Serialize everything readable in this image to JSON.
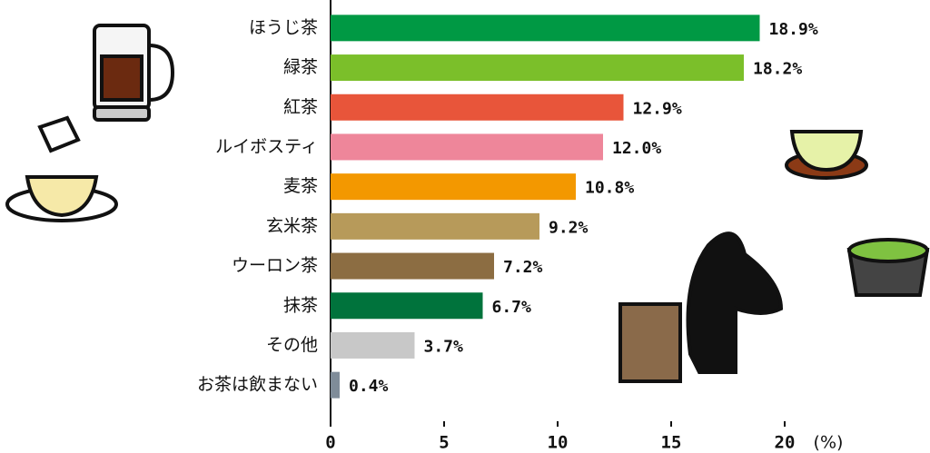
{
  "chart_data": {
    "type": "bar",
    "orientation": "horizontal",
    "categories": [
      "ほうじ茶",
      "緑茶",
      "紅茶",
      "ルイボスティ",
      "麦茶",
      "玄米茶",
      "ウーロン茶",
      "抹茶",
      "その他",
      "お茶は飲まない"
    ],
    "values": [
      18.9,
      18.2,
      12.9,
      12.0,
      10.8,
      9.2,
      7.2,
      6.7,
      3.7,
      0.4
    ],
    "value_labels": [
      "18.9%",
      "18.2%",
      "12.9%",
      "12.0%",
      "10.8%",
      "9.2%",
      "7.2%",
      "6.7%",
      "3.7%",
      "0.4%"
    ],
    "colors": [
      "#009944",
      "#7bbf2a",
      "#e8553a",
      "#ee869a",
      "#f39800",
      "#b79a5a",
      "#8c6d42",
      "#00733c",
      "#c8c8c8",
      "#7f8c99"
    ],
    "xlim": [
      0,
      20
    ],
    "xticks": [
      0,
      5,
      10,
      15,
      20
    ],
    "x_label": "(%)"
  }
}
